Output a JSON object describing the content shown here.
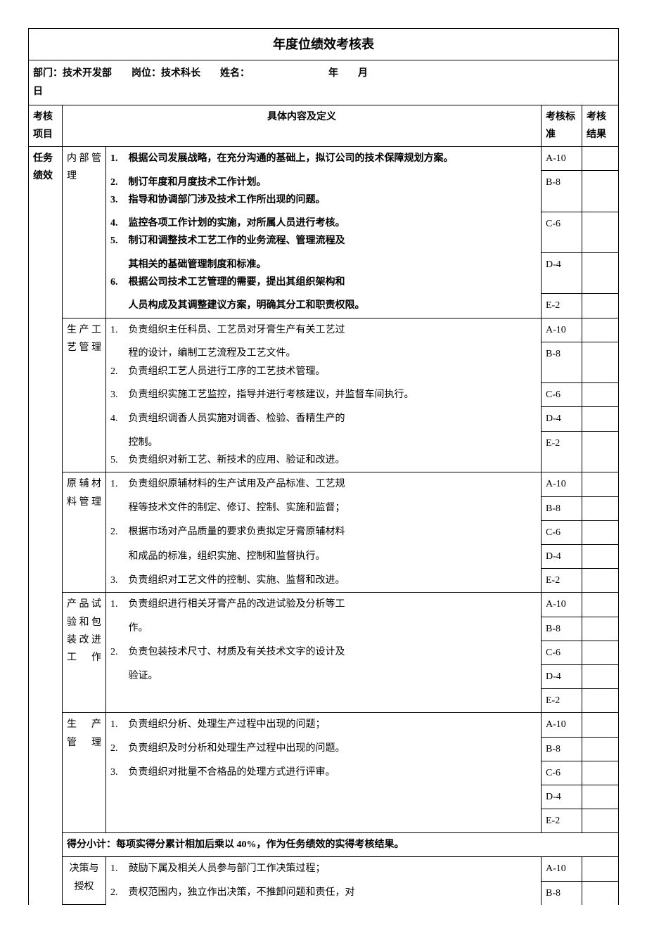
{
  "title": "年度位绩效考核表",
  "info": {
    "dept_label": "部门：",
    "dept_value": "技术开发部",
    "post_label": "岗位：",
    "post_value": "技术科长",
    "name_label": "姓名：",
    "year_label": "年",
    "month_label": "月",
    "day_label": "日"
  },
  "headers": {
    "category": "考核项目",
    "content": "具体内容及定义",
    "standard": "考核标准",
    "result": "考核结果"
  },
  "standards": [
    "A-10",
    "B-8",
    "C-6",
    "D-4",
    "E-2"
  ],
  "cat1": "任务绩效",
  "sections": [
    {
      "sub": "内部管理",
      "sub_spaced": "内 部 管 理",
      "items": [
        {
          "n": "1.",
          "t": "根据公司发展战略，在充分沟通的基础上，拟订公司的技术保障规划方案。",
          "bold": true
        },
        {
          "n": "2.",
          "t": "制订年度和月度技术工作计划。",
          "bold": true
        },
        {
          "n": "3.",
          "t": "指导和协调部门涉及技术工作所出现的问题。",
          "bold": true
        },
        {
          "n": "4.",
          "t": "监控各项工作计划的实施，对所属人员进行考核。",
          "bold": true
        },
        {
          "n": "5.",
          "t": "制订和调整技术工艺工作的业务流程、管理流程及其相关的基础管理制度和标准。",
          "bold": true
        },
        {
          "n": "6.",
          "t": "根据公司技术工艺管理的需要，提出其组织架构和人员构成及其调整建议方案，明确其分工和职责权限。",
          "bold": true
        }
      ],
      "std_heights": [
        52,
        44,
        52,
        46,
        46
      ]
    },
    {
      "sub": "生产工艺管理",
      "sub_spaced": "生 产 工 艺管理",
      "items": [
        {
          "n": "1.",
          "t": "负责组织主任科员、工艺员对牙膏生产有关工艺过程的设计，编制工艺流程及工艺文件。"
        },
        {
          "n": "2.",
          "t": "负责组织工艺人员进行工序的工艺技术管理。"
        },
        {
          "n": "3.",
          "t": "负责组织实施工艺监控，指导并进行考核建议，并监督车间执行。"
        },
        {
          "n": "4.",
          "t": "负责组织调香人员实施对调香、检验、香精生产的控制。"
        },
        {
          "n": "5.",
          "t": "负责组织对新工艺、新技术的应用、验证和改进。"
        }
      ],
      "std_heights": [
        36,
        38,
        40,
        34,
        34
      ]
    },
    {
      "sub": "原辅材料管理",
      "sub_spaced": "原 辅 材 料管理",
      "items": [
        {
          "n": "1.",
          "t": "负责组织原辅材料的生产试用及产品标准、工艺规程等技术文件的制定、修订、控制、实施和监督；"
        },
        {
          "n": "2.",
          "t": "根据市场对产品质量的要求负责拟定牙膏原辅材料和成品的标准，组织实施、控制和监督执行。"
        },
        {
          "n": "3.",
          "t": "负责组织对工艺文件的控制、实施、监督和改进。"
        }
      ],
      "std_heights": [
        26,
        26,
        26,
        26,
        26
      ]
    },
    {
      "sub": "产品试验和包装改进工作",
      "sub_spaced": "产 品 试 验 和 包 装 改 进 工作",
      "items": [
        {
          "n": "1.",
          "t": "负责组织进行相关牙膏产品的改进试验及分析等工作。"
        },
        {
          "n": "2.",
          "t": "负责包装技术尺寸、材质及有关技术文字的设计及验证。"
        }
      ],
      "std_heights": [
        26,
        26,
        26,
        26,
        26
      ]
    },
    {
      "sub": "生产管理",
      "sub_spaced": "生产\n管理",
      "items": [
        {
          "n": "1.",
          "t": "负责组织分析、处理生产过程中出现的问题；"
        },
        {
          "n": "2.",
          "t": "负责组织及时分析和处理生产过程中出现的问题。"
        },
        {
          "n": "3.",
          "t": "负责组织对批量不合格品的处理方式进行评审。"
        }
      ],
      "std_heights": [
        24,
        24,
        24,
        24,
        24
      ]
    }
  ],
  "subtotal": "得分小计：每项实得分累计相加后乘以 40%，作为任务绩效的实得考核结果。",
  "section2": {
    "sub": "决策与授权",
    "sub_spaced": "决策与\n授权",
    "items": [
      {
        "n": "1.",
        "t": "鼓励下属及相关人员参与部门工作决策过程；"
      },
      {
        "n": "2.",
        "t": "责权范围内，独立作出决策，不推卸问题和责任，对"
      }
    ],
    "std": [
      "A-10",
      "B-8"
    ],
    "std_heights": [
      36,
      36
    ]
  }
}
